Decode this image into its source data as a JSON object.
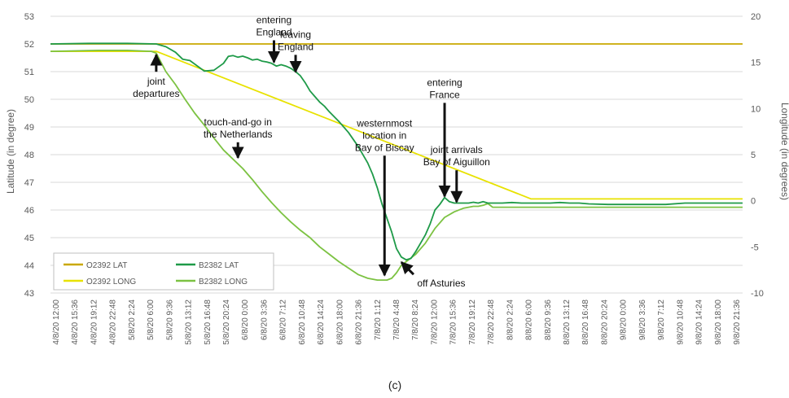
{
  "chart_data": {
    "type": "line",
    "caption": "(c)",
    "ylabel": "Latitude (in degree)",
    "y2label": "Longitude (in degrees)",
    "ylim": [
      43,
      53
    ],
    "y2lim": [
      -10,
      20
    ],
    "yticks": [
      43,
      44,
      45,
      46,
      47,
      48,
      49,
      50,
      51,
      52,
      53
    ],
    "y2ticks": [
      -10,
      -5,
      0,
      5,
      10,
      15,
      20
    ],
    "grid": true,
    "legend_position": "bottom-left",
    "x_unit": "hours since 4/8/20 12:00",
    "xlim": [
      0,
      144
    ],
    "x_tick_labels": [
      "4/8/20 12:00",
      "4/8/20 15:36",
      "4/8/20 19:12",
      "4/8/20 22:48",
      "5/8/20 2:24",
      "5/8/20 6:00",
      "5/8/20 9:36",
      "5/8/20 13:12",
      "5/8/20 16:48",
      "5/8/20 20:24",
      "6/8/20 0:00",
      "6/8/20 3:36",
      "6/8/20 7:12",
      "6/8/20 10:48",
      "6/8/20 14:24",
      "6/8/20 18:00",
      "6/8/20 21:36",
      "7/8/20 1:12",
      "7/8/20 4:48",
      "7/8/20 8:24",
      "7/8/20 12:00",
      "7/8/20 15:36",
      "7/8/20 19:12",
      "7/8/20 22:48",
      "8/8/20 2:24",
      "8/8/20 6:00",
      "8/8/20 9:36",
      "8/8/20 13:12",
      "8/8/20 16:48",
      "8/8/20 20:24",
      "9/8/20 0:00",
      "9/8/20 3:36",
      "9/8/20 7:12",
      "9/8/20 10:48",
      "9/8/20 14:24",
      "9/8/20 18:00",
      "9/8/20 21:36"
    ],
    "series": [
      {
        "name": "O2392 LAT",
        "axis": "left",
        "color": "#c9a800",
        "x": [
          0,
          22,
          45,
          144
        ],
        "y": [
          52.0,
          52.0,
          52.0,
          52.0
        ]
      },
      {
        "name": "O2392 LONG",
        "axis": "right",
        "color": "#e8e200",
        "x": [
          0,
          22,
          100,
          144
        ],
        "y": [
          16.2,
          16.2,
          0.2,
          0.2
        ]
      },
      {
        "name": "B2382 LAT",
        "axis": "left",
        "color": "#1e9a48",
        "x": [
          0,
          8,
          16,
          22,
          24,
          26,
          27.5,
          29,
          32,
          34,
          36,
          37,
          38,
          39,
          40,
          41,
          42,
          43,
          44,
          45,
          46,
          47,
          48,
          49,
          50,
          51,
          52,
          53,
          54,
          55,
          56,
          57,
          58,
          60,
          62,
          64,
          66,
          67,
          68,
          69,
          70,
          71,
          72,
          73,
          74,
          75,
          76,
          77,
          78,
          79,
          80,
          81,
          82,
          83,
          84,
          85,
          86,
          87,
          88,
          89,
          90,
          91,
          92,
          93,
          94,
          96,
          98,
          100,
          102,
          104,
          106,
          108,
          110,
          112,
          116,
          120,
          124,
          128,
          132,
          136,
          140,
          144
        ],
        "y": [
          52.0,
          52.02,
          52.02,
          52.0,
          51.9,
          51.7,
          51.45,
          51.4,
          51.02,
          51.05,
          51.3,
          51.55,
          51.58,
          51.52,
          51.56,
          51.5,
          51.42,
          51.45,
          51.38,
          51.35,
          51.3,
          51.2,
          51.25,
          51.2,
          51.12,
          51.0,
          50.85,
          50.6,
          50.3,
          50.1,
          49.9,
          49.75,
          49.55,
          49.2,
          48.8,
          48.3,
          47.7,
          47.3,
          46.8,
          46.2,
          45.7,
          45.2,
          44.6,
          44.3,
          44.2,
          44.25,
          44.5,
          44.8,
          45.1,
          45.5,
          46.0,
          46.2,
          46.45,
          46.3,
          46.25,
          46.25,
          46.25,
          46.25,
          46.28,
          46.25,
          46.3,
          46.25,
          46.25,
          46.25,
          46.25,
          46.27,
          46.25,
          46.25,
          46.25,
          46.25,
          46.27,
          46.25,
          46.25,
          46.22,
          46.2,
          46.2,
          46.2,
          46.2,
          46.25,
          46.25,
          46.25,
          46.25
        ]
      },
      {
        "name": "B2382 LONG",
        "axis": "right",
        "color": "#7cc242",
        "x": [
          0,
          10,
          16,
          21,
          22,
          23,
          24,
          26,
          28,
          30,
          32,
          34,
          36,
          38,
          40,
          42,
          44,
          46,
          48,
          50,
          52,
          54,
          56,
          58,
          60,
          62,
          64,
          66,
          67,
          68,
          69,
          70,
          71,
          72,
          73,
          74,
          76,
          78,
          80,
          82,
          84,
          86,
          88,
          89,
          90,
          91,
          92,
          96,
          100,
          104,
          110,
          120,
          130,
          144
        ],
        "y": [
          16.2,
          16.3,
          16.3,
          16.2,
          16.0,
          15.0,
          14.0,
          12.6,
          11.0,
          9.5,
          8.2,
          6.8,
          5.5,
          4.5,
          3.5,
          2.3,
          1.0,
          -0.2,
          -1.3,
          -2.3,
          -3.2,
          -4.0,
          -5.0,
          -5.8,
          -6.6,
          -7.3,
          -8.0,
          -8.4,
          -8.5,
          -8.6,
          -8.6,
          -8.6,
          -8.4,
          -7.8,
          -7.0,
          -6.6,
          -5.8,
          -4.6,
          -3.0,
          -1.8,
          -1.2,
          -0.8,
          -0.6,
          -0.6,
          -0.5,
          -0.3,
          -0.7,
          -0.7,
          -0.7,
          -0.7,
          -0.7,
          -0.7,
          -0.7,
          -0.7
        ]
      }
    ],
    "annotations": [
      {
        "lines": [
          "joint",
          "departures"
        ],
        "x": 22,
        "y": 51.7,
        "axis": "left",
        "arrow": "up",
        "arrow_len": 24,
        "label_below": true
      },
      {
        "lines": [
          "entering",
          "England"
        ],
        "x": 46.5,
        "y": 51.25,
        "axis": "left",
        "arrow": "down",
        "arrow_len": 30,
        "label_below": false
      },
      {
        "lines": [
          "leaving",
          "England"
        ],
        "x": 51,
        "y": 50.9,
        "axis": "left",
        "arrow": "down",
        "arrow_len": 24,
        "label_below": false
      },
      {
        "lines": [
          "touch-and-go in",
          "the Netherlands"
        ],
        "x": 39,
        "y": 47.8,
        "axis": "left",
        "arrow": "down",
        "arrow_len": 22,
        "label_below": false
      },
      {
        "lines": [
          "westernmost",
          "location in",
          "Bay of Biscay"
        ],
        "x": 69.5,
        "y": 43.55,
        "axis": "left",
        "arrow": "down",
        "arrow_len": 150,
        "label_below": false
      },
      {
        "lines": [
          "off Asturies"
        ],
        "x": 72.5,
        "y": 44.2,
        "axis": "left",
        "arrow": "up-left",
        "arrow_len": 18,
        "label_below": true
      },
      {
        "lines": [
          "entering",
          "France"
        ],
        "x": 82,
        "y": 46.4,
        "axis": "left",
        "arrow": "down",
        "arrow_len": 118,
        "label_below": false
      },
      {
        "lines": [
          "joint arrivals",
          "Bay of Aiguillon"
        ],
        "x": 84.5,
        "y": 46.2,
        "axis": "left",
        "arrow": "down",
        "arrow_len": 42,
        "label_below": false
      }
    ]
  }
}
